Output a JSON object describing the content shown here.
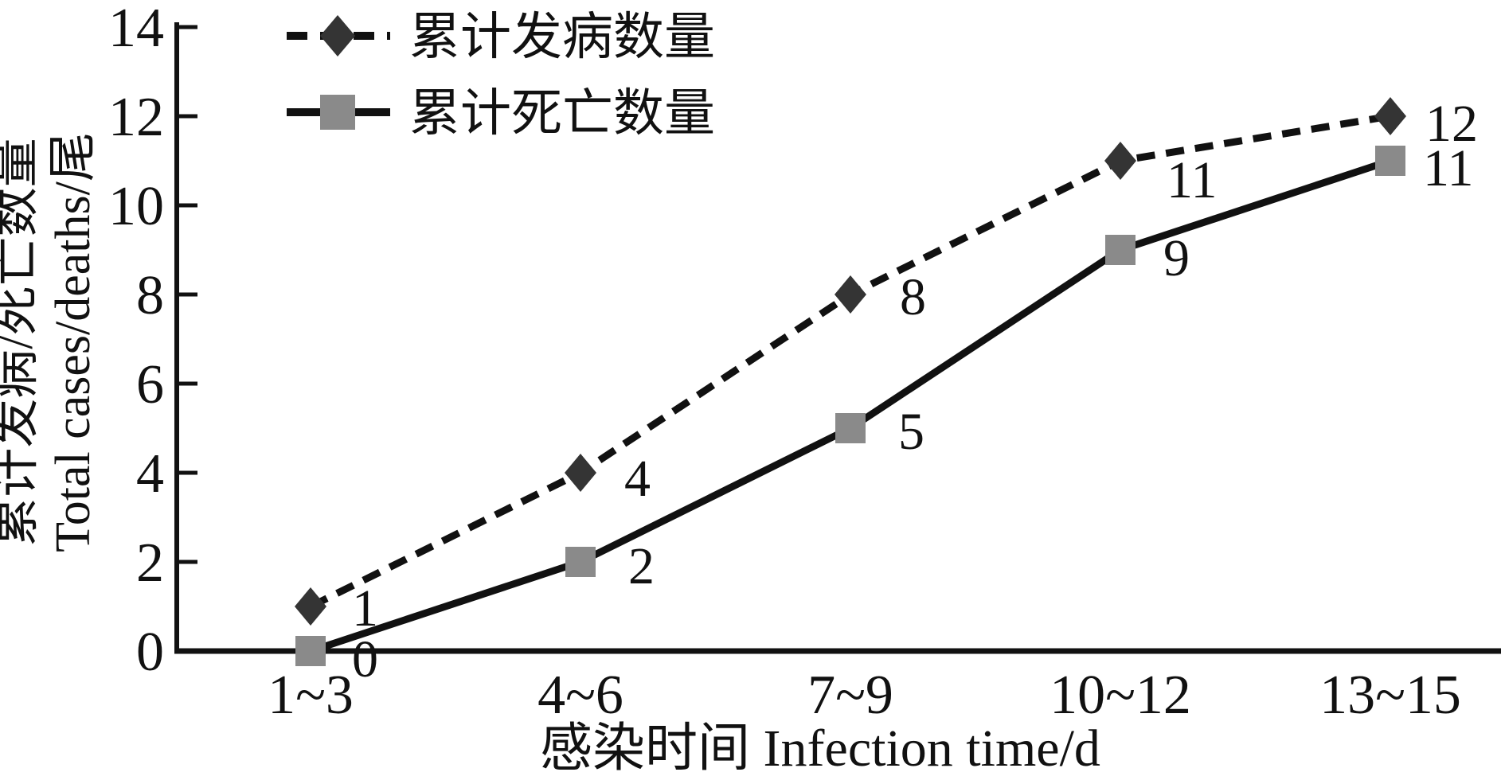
{
  "page": {
    "background": "#ffffff"
  },
  "chart_data": {
    "type": "line",
    "title": "",
    "categories": [
      "1~3",
      "4~6",
      "7~9",
      "10~12",
      "13~15"
    ],
    "series": [
      {
        "name": "累计发病数量",
        "values": [
          1,
          4,
          8,
          11,
          12
        ],
        "point_labels": [
          "1",
          "4",
          "8",
          "11",
          "12"
        ],
        "line_style": "dashed",
        "marker": "diamond",
        "line_color": "#111111",
        "marker_color": "#343434"
      },
      {
        "name": "累计死亡数量",
        "values": [
          0,
          2,
          5,
          9,
          11
        ],
        "point_labels": [
          "0",
          "2",
          "5",
          "9",
          "11"
        ],
        "line_style": "solid",
        "marker": "square",
        "line_color": "#111111",
        "marker_color": "#8a8a8a"
      }
    ],
    "xlabel": "感染时间 Infection time/d",
    "ylabel_line1": "累计发病/死亡数量",
    "ylabel_line2": "Total cases/deaths/尾",
    "ylim": [
      0,
      14
    ],
    "yticks": [
      0,
      2,
      4,
      6,
      8,
      10,
      12,
      14
    ],
    "grid": false,
    "legend_position": "top-left-inside",
    "axis_color": "#111111",
    "text_color": "#111111"
  }
}
